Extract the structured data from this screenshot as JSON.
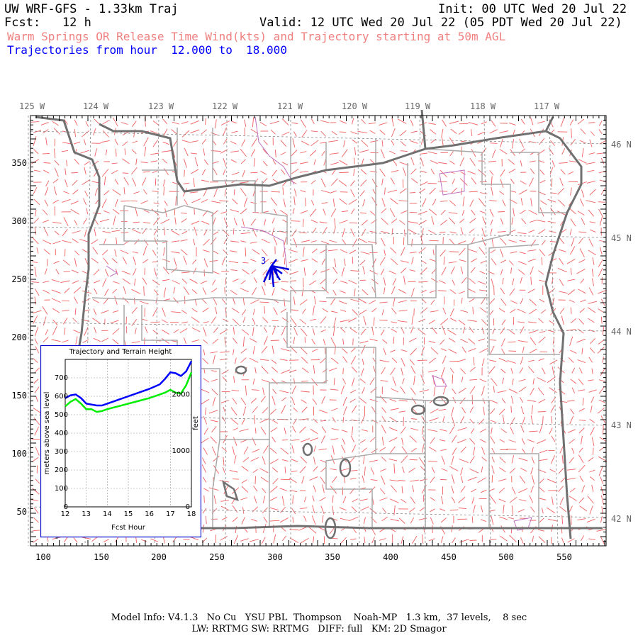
{
  "header": {
    "title": "UW WRF-GFS - 1.33km Traj",
    "init": "Init: 00 UTC Wed 20 Jul 22",
    "fcst": "Fcst:   12 h",
    "valid": "Valid: 12 UTC Wed 20 Jul 22 (05 PDT Wed 20 Jul 22)",
    "subtitle": "Warm Springs OR Release Time Wind(kts) and Trajectory starting at 50m AGL",
    "traj_range": "Trajectories from hour  12.000 to  18.000"
  },
  "map": {
    "lon_labels": [
      "125 W",
      "124 W",
      "123 W",
      "122 W",
      "121 W",
      "120 W",
      "119 W",
      "118 W",
      "117 W"
    ],
    "lat_labels": [
      "46 N",
      "45 N",
      "44 N",
      "43 N",
      "42 N"
    ],
    "y_ticks": [
      "350",
      "300",
      "250",
      "200",
      "150",
      "100",
      "50"
    ],
    "x_ticks": [
      "100",
      "150",
      "200",
      "250",
      "300",
      "350",
      "400",
      "450",
      "500",
      "550"
    ],
    "traj_marker": "3",
    "colors": {
      "barb": "#f06060",
      "border": "#666666",
      "county": "#aaaaaa",
      "traj": "#0000dd",
      "water": "#c060c0"
    }
  },
  "inset": {
    "title": "Trajectory and Terrain Height",
    "ylabel_left": "meters above sea level",
    "ylabel_right": "feet",
    "xlabel": "Fcst Hour",
    "x_ticks": [
      "12",
      "13",
      "14",
      "15",
      "16",
      "17",
      "18"
    ],
    "y_ticks_left": [
      "0",
      "100",
      "200",
      "300",
      "400",
      "500",
      "600",
      "700"
    ],
    "y_ticks_right": [
      "0",
      "1000",
      "2000"
    ]
  },
  "chart_data": {
    "type": "line",
    "title": "Trajectory and Terrain Height",
    "xlabel": "Fcst Hour",
    "ylabel": "meters above sea level",
    "xlim": [
      12,
      18
    ],
    "ylim": [
      0,
      800
    ],
    "x": [
      12,
      12.25,
      12.5,
      12.75,
      13,
      13.25,
      13.5,
      13.75,
      14,
      14.5,
      15,
      15.5,
      16,
      16.5,
      16.75,
      17,
      17.25,
      17.5,
      17.75,
      18
    ],
    "series": [
      {
        "color": "#0000ff",
        "values": [
          590,
          605,
          610,
          590,
          560,
          555,
          550,
          550,
          560,
          580,
          600,
          620,
          640,
          665,
          695,
          730,
          725,
          710,
          735,
          790
        ]
      },
      {
        "color": "#00ee00",
        "values": [
          545,
          570,
          585,
          560,
          530,
          530,
          515,
          520,
          530,
          545,
          560,
          575,
          590,
          610,
          620,
          635,
          620,
          615,
          660,
          730
        ]
      }
    ]
  },
  "footer": {
    "line1": "Model Info: V4.1.3   No Cu   YSU PBL  Thompson    Noah-MP   1.3 km,  37 levels,    8 sec",
    "line2": "LW: RRTMG SW: RRTMG   DIFF: full   KM: 2D Smagor"
  }
}
